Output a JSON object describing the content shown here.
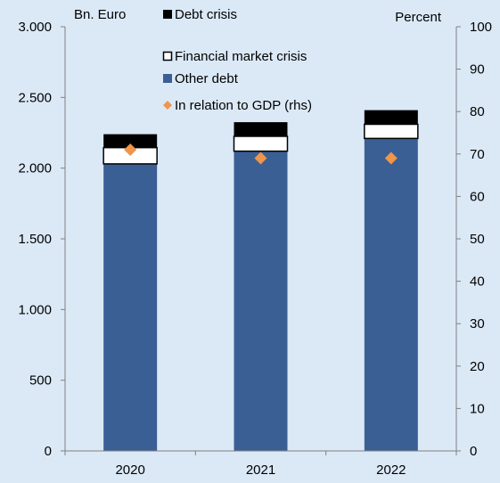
{
  "colors": {
    "background": "#dbe9f7",
    "other_debt": "#3a5f95",
    "financial_market_crisis": "#ffffff",
    "debt_crisis": "#000000",
    "gdp_marker": "#f0954a",
    "axis": "#808080"
  },
  "chart_data": {
    "type": "bar",
    "stacked": true,
    "categories": [
      "2020",
      "2021",
      "2022"
    ],
    "series": [
      {
        "name": "Other debt",
        "values": [
          2030,
          2120,
          2210
        ],
        "color": "#3a5f95",
        "axis": "left"
      },
      {
        "name": "Financial market crisis",
        "values": [
          115,
          105,
          100
        ],
        "color": "#ffffff",
        "axis": "left"
      },
      {
        "name": "Debt crisis",
        "values": [
          95,
          100,
          100
        ],
        "color": "#000000",
        "axis": "left"
      },
      {
        "name": "In relation to GDP (rhs)",
        "type": "scatter",
        "marker": "diamond",
        "values": [
          71,
          69,
          69
        ],
        "color": "#f0954a",
        "axis": "right"
      }
    ],
    "ylabel_left": "Bn. Euro",
    "ylabel_right": "Percent",
    "ylim_left": [
      0,
      3000
    ],
    "ylim_right": [
      0,
      100
    ],
    "yticks_left": [
      0,
      500,
      1000,
      1500,
      2000,
      2500,
      3000
    ],
    "yticks_left_labels": [
      "0",
      "500",
      "1.000",
      "1.500",
      "2.000",
      "2.500",
      "3.000"
    ],
    "yticks_right": [
      0,
      10,
      20,
      30,
      40,
      50,
      60,
      70,
      80,
      90,
      100
    ],
    "yticks_right_labels": [
      "0",
      "10",
      "20",
      "30",
      "40",
      "50",
      "60",
      "70",
      "80",
      "90",
      "100"
    ],
    "legend": {
      "placement": "top-center",
      "entries": [
        "Debt crisis",
        "Financial market crisis",
        "Other debt",
        "In relation to GDP (rhs)"
      ]
    },
    "grid": false
  }
}
